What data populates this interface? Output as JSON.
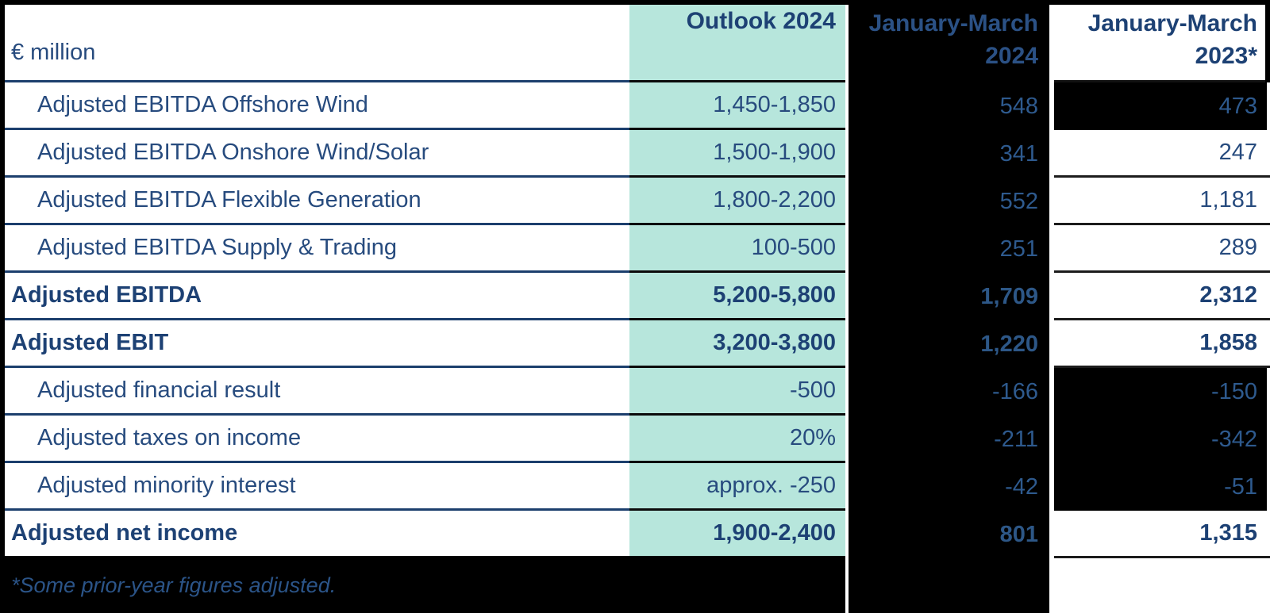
{
  "unit_label": "€ million",
  "header": {
    "outlook": "Outlook 2024",
    "q2024_line1": "January-March",
    "q2024_line2": "2024",
    "q2023_line1": "January-March",
    "q2023_line2": "2023*"
  },
  "rows": [
    {
      "label": "Adjusted EBITDA Offshore Wind",
      "outlook": "1,450-1,850",
      "q2024": "548",
      "q2023": "473"
    },
    {
      "label": "Adjusted EBITDA Onshore Wind/Solar",
      "outlook": "1,500-1,900",
      "q2024": "341",
      "q2023": "247"
    },
    {
      "label": "Adjusted EBITDA Flexible Generation",
      "outlook": "1,800-2,200",
      "q2024": "552",
      "q2023": "1,181"
    },
    {
      "label": "Adjusted EBITDA Supply & Trading",
      "outlook": "100-500",
      "q2024": "251",
      "q2023": "289"
    },
    {
      "label": "Adjusted EBITDA",
      "outlook": "5,200-5,800",
      "q2024": "1,709",
      "q2023": "2,312"
    },
    {
      "label": "Adjusted EBIT",
      "outlook": "3,200-3,800",
      "q2024": "1,220",
      "q2023": "1,858"
    },
    {
      "label": "Adjusted financial result",
      "outlook": "-500",
      "q2024": "-166",
      "q2023": "-150"
    },
    {
      "label": "Adjusted taxes on income",
      "outlook": "20%",
      "q2024": "-211",
      "q2023": "-342"
    },
    {
      "label": "Adjusted minority interest",
      "outlook": "approx. -250",
      "q2024": "-42",
      "q2023": "-51"
    },
    {
      "label": "Adjusted net income",
      "outlook": "1,900-2,400",
      "q2024": "801",
      "q2023": "1,315"
    }
  ],
  "footnote": "*Some prior-year figures adjusted.",
  "colors": {
    "mint": "#b7e6dc",
    "navy": "#274b7e",
    "navy_bold": "#1d4174",
    "navy_on_black": "#2e5a8e",
    "black": "#000000"
  }
}
